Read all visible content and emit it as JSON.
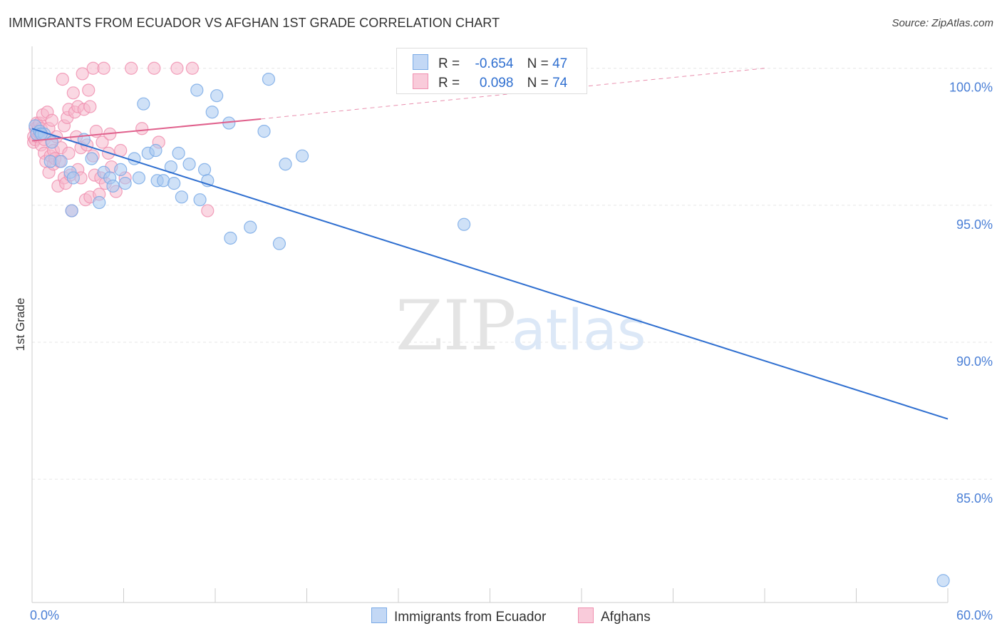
{
  "header": {
    "title": "IMMIGRANTS FROM ECUADOR VS AFGHAN 1ST GRADE CORRELATION CHART",
    "source": "Source: ZipAtlas.com"
  },
  "watermark": {
    "zip": "ZIP",
    "atlas": "atlas"
  },
  "colors": {
    "blue_fill": "#a8c8f0",
    "blue_stroke": "#7aaae6",
    "blue_line": "#2f6fd0",
    "pink_fill": "#f6b8cc",
    "pink_stroke": "#f090b0",
    "pink_line": "#e0608c",
    "grid": "#e6e6e6",
    "axis_text": "#4a7fd6"
  },
  "legend": {
    "r_label": "R =",
    "n_label": "N =",
    "rows": [
      {
        "r": "-0.654",
        "n": "47"
      },
      {
        "r": "0.098",
        "n": "74"
      }
    ]
  },
  "chart_data": {
    "type": "scatter",
    "title": "IMMIGRANTS FROM ECUADOR VS AFGHAN 1ST GRADE CORRELATION CHART",
    "xlabel": "",
    "ylabel": "1st Grade",
    "xlim": [
      0,
      60
    ],
    "ylim": [
      80.5,
      100.8
    ],
    "x_tick_labels": [
      "0.0%",
      "60.0%"
    ],
    "y_ticks": [
      85,
      90,
      95,
      100
    ],
    "y_tick_labels": [
      "85.0%",
      "90.0%",
      "95.0%",
      "100.0%"
    ],
    "series": [
      {
        "name": "Immigrants from Ecuador",
        "color": "#a8c8f0",
        "points": [
          [
            0.2,
            97.9
          ],
          [
            0.3,
            97.6
          ],
          [
            0.5,
            97.7
          ],
          [
            0.8,
            97.6
          ],
          [
            1.2,
            96.6
          ],
          [
            1.3,
            97.3
          ],
          [
            1.9,
            96.6
          ],
          [
            2.5,
            96.2
          ],
          [
            2.7,
            96.0
          ],
          [
            3.4,
            97.4
          ],
          [
            3.9,
            96.7
          ],
          [
            4.4,
            95.1
          ],
          [
            4.7,
            96.2
          ],
          [
            5.1,
            96.0
          ],
          [
            5.3,
            95.7
          ],
          [
            6.1,
            95.8
          ],
          [
            5.8,
            96.3
          ],
          [
            6.7,
            96.7
          ],
          [
            7.0,
            96.0
          ],
          [
            7.3,
            98.7
          ],
          [
            7.6,
            96.9
          ],
          [
            8.1,
            97.0
          ],
          [
            8.2,
            95.9
          ],
          [
            9.1,
            96.4
          ],
          [
            8.6,
            95.9
          ],
          [
            9.6,
            96.9
          ],
          [
            9.3,
            95.8
          ],
          [
            9.8,
            95.3
          ],
          [
            10.3,
            96.5
          ],
          [
            10.8,
            99.2
          ],
          [
            11.0,
            95.2
          ],
          [
            11.3,
            96.3
          ],
          [
            11.5,
            95.9
          ],
          [
            11.8,
            98.4
          ],
          [
            12.1,
            99.0
          ],
          [
            12.9,
            98.0
          ],
          [
            13.0,
            93.8
          ],
          [
            14.3,
            94.2
          ],
          [
            15.2,
            97.7
          ],
          [
            15.5,
            99.6
          ],
          [
            16.2,
            93.6
          ],
          [
            16.6,
            96.5
          ],
          [
            17.7,
            96.8
          ],
          [
            28.3,
            94.3
          ],
          [
            2.6,
            94.8
          ],
          [
            0.6,
            97.6
          ],
          [
            59.7,
            81.3
          ]
        ]
      },
      {
        "name": "Afghans",
        "color": "#f6b8cc",
        "points": [
          [
            0.1,
            97.5
          ],
          [
            0.1,
            97.3
          ],
          [
            0.2,
            97.8
          ],
          [
            0.2,
            97.4
          ],
          [
            0.3,
            98.0
          ],
          [
            0.3,
            97.7
          ],
          [
            0.4,
            97.5
          ],
          [
            0.4,
            97.9
          ],
          [
            0.5,
            97.6
          ],
          [
            0.5,
            98.0
          ],
          [
            0.6,
            97.2
          ],
          [
            0.6,
            97.8
          ],
          [
            0.7,
            98.3
          ],
          [
            0.8,
            96.9
          ],
          [
            0.8,
            97.4
          ],
          [
            0.9,
            96.6
          ],
          [
            1.0,
            98.4
          ],
          [
            1.1,
            96.2
          ],
          [
            1.1,
            97.8
          ],
          [
            1.2,
            96.8
          ],
          [
            1.3,
            97.3
          ],
          [
            1.3,
            98.1
          ],
          [
            1.4,
            96.5
          ],
          [
            1.4,
            97.0
          ],
          [
            1.5,
            96.7
          ],
          [
            1.6,
            97.5
          ],
          [
            1.7,
            95.7
          ],
          [
            1.8,
            96.6
          ],
          [
            1.9,
            97.1
          ],
          [
            2.0,
            99.6
          ],
          [
            2.1,
            96.0
          ],
          [
            2.1,
            97.9
          ],
          [
            2.2,
            95.8
          ],
          [
            2.3,
            98.2
          ],
          [
            2.4,
            96.9
          ],
          [
            2.4,
            98.5
          ],
          [
            2.5,
            96.1
          ],
          [
            2.6,
            94.8
          ],
          [
            2.7,
            99.1
          ],
          [
            2.8,
            98.4
          ],
          [
            2.9,
            97.5
          ],
          [
            3.0,
            96.3
          ],
          [
            3.0,
            98.6
          ],
          [
            3.2,
            96.0
          ],
          [
            3.2,
            97.1
          ],
          [
            3.3,
            99.8
          ],
          [
            3.4,
            98.5
          ],
          [
            3.5,
            95.2
          ],
          [
            3.6,
            97.2
          ],
          [
            3.7,
            99.2
          ],
          [
            3.8,
            95.3
          ],
          [
            3.8,
            98.6
          ],
          [
            4.0,
            96.8
          ],
          [
            4.0,
            100.0
          ],
          [
            4.1,
            96.1
          ],
          [
            4.2,
            97.7
          ],
          [
            4.4,
            95.4
          ],
          [
            4.5,
            96.0
          ],
          [
            4.6,
            97.3
          ],
          [
            4.7,
            100.0
          ],
          [
            4.8,
            95.8
          ],
          [
            5.0,
            96.9
          ],
          [
            5.1,
            97.6
          ],
          [
            5.2,
            96.4
          ],
          [
            5.5,
            95.5
          ],
          [
            5.8,
            97.0
          ],
          [
            6.1,
            96.0
          ],
          [
            6.5,
            100.0
          ],
          [
            7.2,
            97.8
          ],
          [
            8.0,
            100.0
          ],
          [
            8.3,
            97.3
          ],
          [
            9.5,
            100.0
          ],
          [
            10.5,
            100.0
          ],
          [
            11.5,
            94.8
          ]
        ]
      }
    ],
    "trendlines": [
      {
        "series": "Immigrants from Ecuador",
        "x": [
          0,
          60
        ],
        "y": [
          97.8,
          87.2
        ],
        "style": "solid"
      },
      {
        "series": "Afghans",
        "x": [
          0,
          15
        ],
        "y": [
          97.35,
          98.15
        ],
        "style": "solid"
      },
      {
        "series": "Afghans",
        "x": [
          15,
          48
        ],
        "y": [
          98.15,
          100.0
        ],
        "style": "dashed"
      }
    ],
    "legend_position": "top-center"
  }
}
